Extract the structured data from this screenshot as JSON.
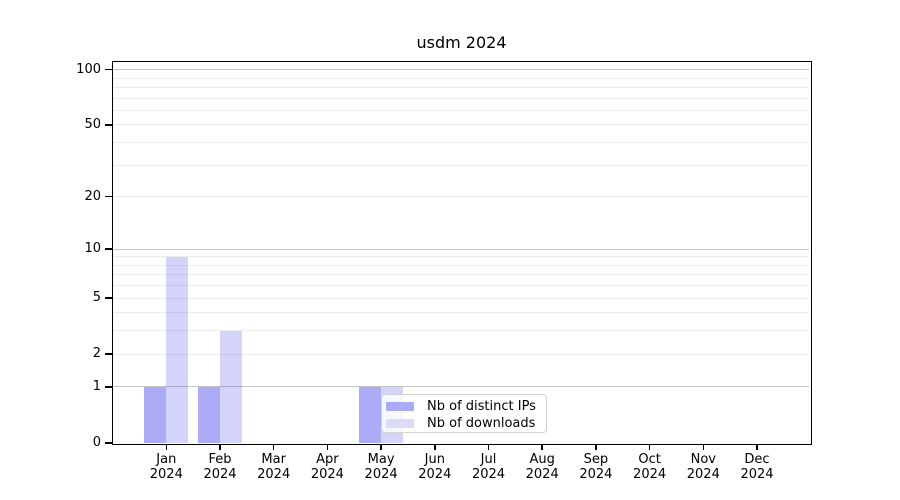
{
  "chart_data": {
    "type": "bar",
    "title": "usdm 2024",
    "x_categories": [
      "Jan",
      "Feb",
      "Mar",
      "Apr",
      "May",
      "Jun",
      "Jul",
      "Aug",
      "Sep",
      "Oct",
      "Nov",
      "Dec"
    ],
    "x_year": "2024",
    "series": [
      {
        "name": "Nb of distinct IPs",
        "color": "rgba(102,102,238,0.55)",
        "color_hex": "#aaaaf8",
        "values": [
          1,
          1,
          0,
          0,
          1,
          0,
          0,
          0,
          0,
          0,
          0,
          0
        ]
      },
      {
        "name": "Nb of downloads",
        "color": "rgba(102,102,238,0.28)",
        "color_hex": "#dbdbf8",
        "values": [
          9,
          3,
          0,
          0,
          1,
          0,
          0,
          0,
          0,
          0,
          0,
          0
        ]
      }
    ],
    "y_scale": "log1p",
    "ylim": [
      0,
      110
    ],
    "y_ticks": [
      0,
      1,
      2,
      5,
      10,
      20,
      50,
      100
    ],
    "y_major_gridlines": [
      1,
      10,
      100
    ],
    "y_minor_gridlines": [
      2,
      3,
      4,
      5,
      6,
      7,
      8,
      9,
      20,
      30,
      40,
      50,
      60,
      70,
      80,
      90
    ],
    "grid": "horizontal-only",
    "legend_position": "lower center",
    "xlabel": "",
    "ylabel": ""
  },
  "colors": {
    "grid_major": "#c3c3c3",
    "grid_minor": "#ececec",
    "axis": "#000000",
    "legend_border": "#d2d2d2",
    "background": "#ffffff",
    "text": "#000000"
  }
}
